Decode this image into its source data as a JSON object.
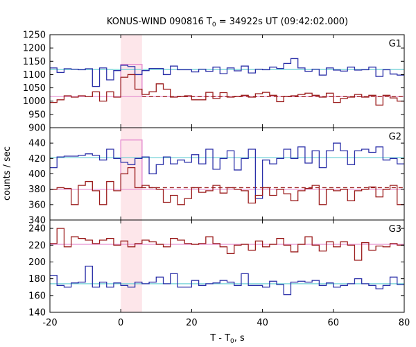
{
  "chart_data": {
    "type": "line",
    "title": {
      "prefix": "KONUS-WIND 090816 T",
      "sub": "0",
      "suffix": " = 34922s UT (09:42:02.000)"
    },
    "xlabel": {
      "prefix": "T - T",
      "sub": "0",
      "suffix": ", s"
    },
    "ylabel": "counts / sec",
    "xlim": [
      -20,
      80
    ],
    "xticks": [
      "-20",
      "0",
      "20",
      "40",
      "60",
      "80"
    ],
    "highlight": {
      "x0": 0,
      "x1": 6,
      "color": "#fde6ea"
    },
    "panels": [
      {
        "name": "G1",
        "ylim": [
          900,
          1250
        ],
        "yticks": [
          "900",
          "950",
          "1000",
          "1050",
          "1100",
          "1150",
          "1200",
          "1250"
        ],
        "series": [
          {
            "name": "blue",
            "color": "#2a2fa8",
            "x0": -20,
            "dx": 2,
            "values": [
              1125,
              1108,
              1122,
              1120,
              1118,
              1122,
              1055,
              1125,
              1080,
              1115,
              1135,
              1130,
              1100,
              1115,
              1123,
              1123,
              1100,
              1132,
              1118,
              1118,
              1110,
              1120,
              1112,
              1128,
              1103,
              1125,
              1114,
              1132,
              1106,
              1120,
              1118,
              1128,
              1123,
              1142,
              1160,
              1125,
              1112,
              1120,
              1098,
              1125,
              1117,
              1113,
              1128,
              1117,
              1118,
              1128,
              1093,
              1118,
              1102,
              1098
            ]
          },
          {
            "name": "red",
            "color": "#9b1c1c",
            "x0": -20,
            "dx": 2,
            "values": [
              995,
              1005,
              1020,
              1015,
              1020,
              1017,
              1035,
              1000,
              1035,
              1015,
              1090,
              1100,
              1045,
              1025,
              1035,
              1065,
              1045,
              1015,
              1018,
              1020,
              1005,
              1005,
              1033,
              1010,
              1032,
              1015,
              1018,
              1022,
              1015,
              1028,
              1033,
              1022,
              998,
              1018,
              1020,
              1025,
              1030,
              1022,
              1015,
              1030,
              995,
              1010,
              1015,
              1025,
              1015,
              1022,
              985,
              1022,
              1012,
              1000
            ]
          }
        ],
        "bg_lines": [
          {
            "color": "#6fd0d6",
            "y": 1119,
            "dash": false
          },
          {
            "color": "#e58ccf",
            "y": 1017,
            "dash": false
          },
          {
            "color": "#9b1c1c",
            "y": 1017,
            "dash": true,
            "from_x": 6
          }
        ],
        "source_rise": {
          "color": "#e58ccf",
          "from": 1017,
          "to": 1138
        }
      },
      {
        "name": "G2",
        "ylim": [
          340,
          460
        ],
        "yticks": [
          "340",
          "360",
          "380",
          "400",
          "420",
          "440"
        ],
        "series": [
          {
            "name": "blue",
            "color": "#2a2fa8",
            "x0": -20,
            "dx": 2,
            "values": [
              408,
              422,
              423,
              423,
              424,
              426,
              424,
              418,
              432,
              420,
              415,
              412,
              420,
              422,
              400,
              412,
              422,
              413,
              418,
              415,
              425,
              413,
              432,
              406,
              420,
              430,
              405,
              420,
              432,
              368,
              418,
              413,
              420,
              432,
              420,
              435,
              414,
              430,
              408,
              430,
              440,
              430,
              412,
              430,
              432,
              428,
              435,
              418,
              420,
              413
            ]
          },
          {
            "name": "red",
            "color": "#9b1c1c",
            "x0": -20,
            "dx": 2,
            "values": [
              380,
              382,
              381,
              360,
              385,
              390,
              378,
              360,
              390,
              378,
              400,
              408,
              382,
              385,
              382,
              380,
              363,
              372,
              360,
              368,
              382,
              376,
              378,
              385,
              375,
              382,
              380,
              378,
              362,
              372,
              382,
              372,
              380,
              374,
              365,
              378,
              381,
              385,
              360,
              380,
              378,
              380,
              365,
              378,
              380,
              383,
              370,
              380,
              385,
              360
            ]
          }
        ],
        "bg_lines": [
          {
            "color": "#6fd0d6",
            "y": 421,
            "dash": false
          },
          {
            "color": "#e58ccf",
            "y": 380,
            "dash": false
          },
          {
            "color": "#9b1c1c",
            "y": 382,
            "dash": true,
            "from_x": 6
          }
        ],
        "source_rise": {
          "color": "#e58ccf",
          "from": 382,
          "to": 444
        }
      },
      {
        "name": "G3",
        "ylim": [
          140,
          250
        ],
        "yticks": [
          "140",
          "160",
          "180",
          "200",
          "220",
          "240"
        ],
        "series": [
          {
            "name": "red",
            "color": "#9b1c1c",
            "x0": -20,
            "dx": 2,
            "values": [
              222,
              240,
              218,
              230,
              228,
              226,
              222,
              226,
              228,
              220,
              225,
              218,
              222,
              226,
              224,
              221,
              218,
              228,
              226,
              222,
              221,
              222,
              230,
              222,
              218,
              210,
              220,
              221,
              214,
              225,
              218,
              221,
              228,
              220,
              212,
              221,
              230,
              220,
              213,
              224,
              218,
              224,
              220,
              202,
              223,
              214,
              219,
              218,
              222,
              220
            ]
          },
          {
            "name": "blue",
            "color": "#2a2fa8",
            "x0": -20,
            "dx": 2,
            "values": [
              184,
              172,
              170,
              175,
              176,
              195,
              170,
              176,
              170,
              175,
              172,
              170,
              176,
              174,
              176,
              182,
              174,
              186,
              170,
              170,
              178,
              172,
              174,
              175,
              178,
              176,
              172,
              186,
              172,
              172,
              170,
              177,
              173,
              161,
              176,
              177,
              176,
              178,
              172,
              175,
              170,
              172,
              174,
              180,
              174,
              172,
              168,
              172,
              182,
              173
            ]
          }
        ],
        "bg_lines": [
          {
            "color": "#6fd0d6",
            "y": 174,
            "dash": false
          },
          {
            "color": "#e58ccf",
            "y": 221,
            "dash": false
          }
        ]
      }
    ]
  }
}
